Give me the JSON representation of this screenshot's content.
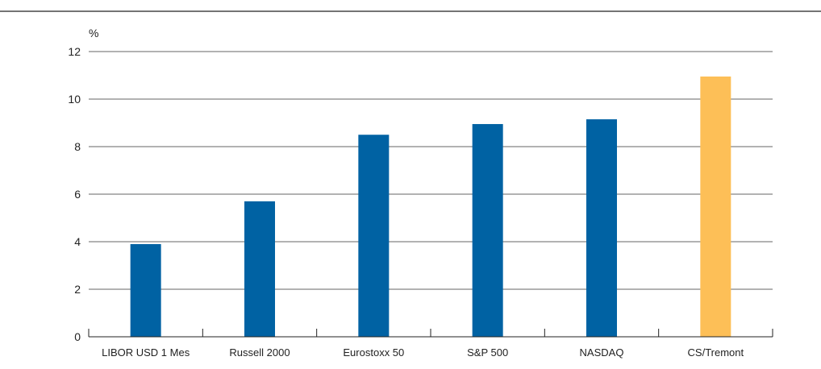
{
  "chart_data": {
    "type": "bar",
    "unit_label": "%",
    "categories": [
      "LIBOR USD 1 Mes",
      "Russell 2000",
      "Eurostoxx 50",
      "S&P 500",
      "NASDAQ",
      "CS/Tremont"
    ],
    "values": [
      3.9,
      5.7,
      8.5,
      8.95,
      9.15,
      10.95
    ],
    "yticks": [
      "0",
      "2",
      "4",
      "6",
      "8",
      "10",
      "12"
    ],
    "ylim": [
      0,
      12
    ],
    "grid": true,
    "bar_colors": [
      "#0062a3",
      "#0062a3",
      "#0062a3",
      "#0062a3",
      "#0062a3",
      "#fdbf57"
    ]
  }
}
